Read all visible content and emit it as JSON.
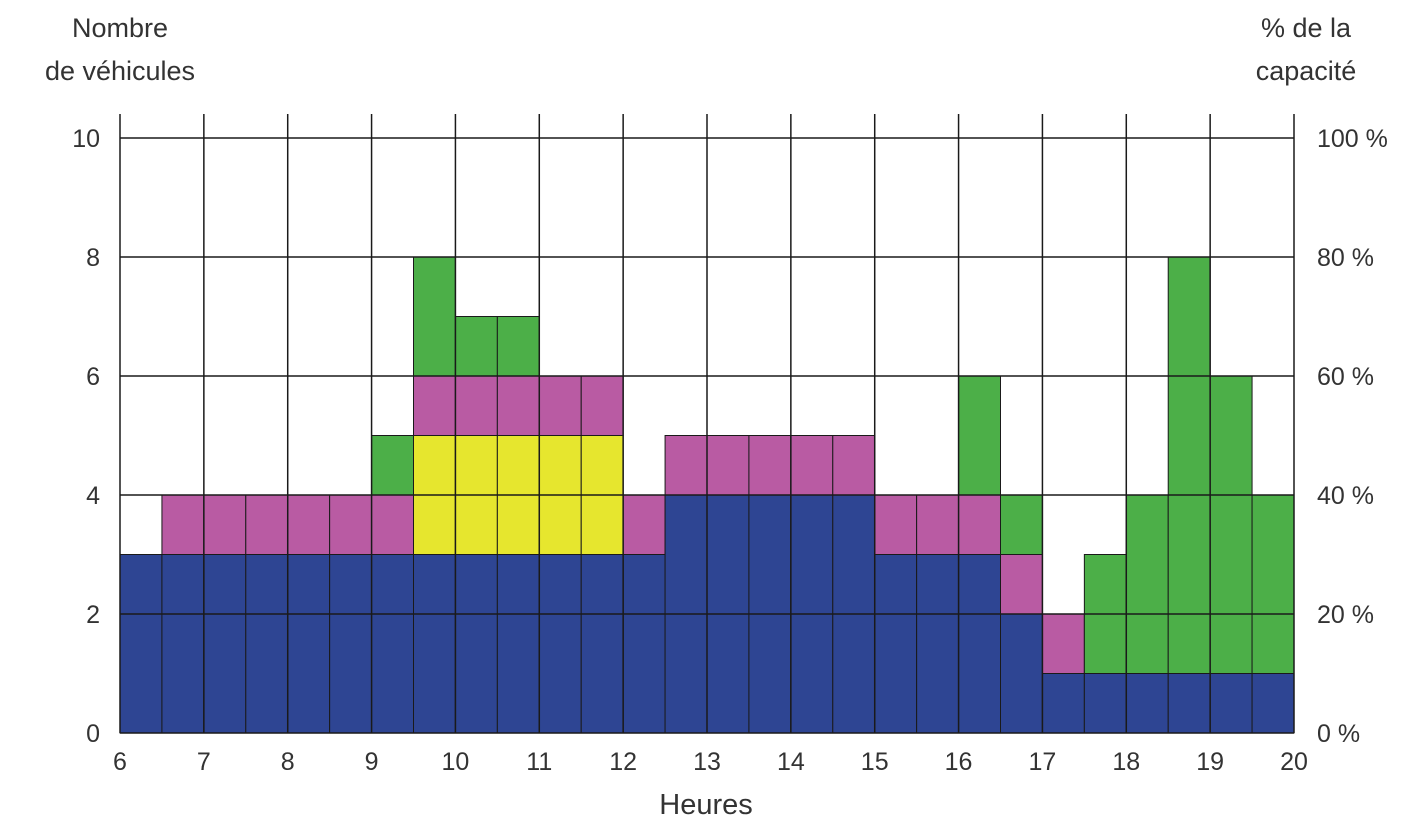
{
  "chart_data": {
    "type": "bar",
    "stacked": true,
    "left_axis_title": [
      "Nombre",
      "de véhicules"
    ],
    "right_axis_title": [
      "% de la",
      "capacité"
    ],
    "xlabel": "Heures",
    "x_ticks": [
      "6",
      "7",
      "8",
      "9",
      "10",
      "11",
      "12",
      "13",
      "14",
      "15",
      "16",
      "17",
      "18",
      "19",
      "20"
    ],
    "y_ticks": [
      "0",
      "2",
      "4",
      "6",
      "8",
      "10"
    ],
    "right_ticks": [
      "0 %",
      "20 %",
      "40 %",
      "60 %",
      "80 %",
      "100 %"
    ],
    "xlim": [
      6,
      20
    ],
    "ylim": [
      0,
      10
    ],
    "y2lim": [
      0,
      100
    ],
    "grid": true,
    "bin_width_hours": 0.5,
    "bin_starts": [
      6,
      6.5,
      7,
      7.5,
      8,
      8.5,
      9,
      9.5,
      10,
      10.5,
      11,
      11.5,
      12,
      12.5,
      13,
      13.5,
      14,
      14.5,
      15,
      15.5,
      16,
      16.5,
      17,
      17.5,
      18,
      18.5,
      19,
      19.5
    ],
    "series": [
      {
        "color": "#2e4593",
        "values": [
          3,
          3,
          3,
          3,
          3,
          3,
          3,
          3,
          3,
          3,
          3,
          3,
          3,
          4,
          4,
          4,
          4,
          4,
          3,
          3,
          3,
          2,
          1,
          1,
          1,
          1,
          1,
          1
        ]
      },
      {
        "color": "#e6e62e",
        "values": [
          0,
          0,
          0,
          0,
          0,
          0,
          0,
          2,
          2,
          2,
          2,
          2,
          0,
          0,
          0,
          0,
          0,
          0,
          0,
          0,
          0,
          0,
          0,
          0,
          0,
          0,
          0,
          0
        ]
      },
      {
        "color": "#b95ba3",
        "values": [
          0,
          1,
          1,
          1,
          1,
          1,
          1,
          1,
          1,
          1,
          1,
          1,
          1,
          1,
          1,
          1,
          1,
          1,
          1,
          1,
          1,
          1,
          1,
          0,
          0,
          0,
          0,
          0
        ]
      },
      {
        "color": "#4caf48",
        "values": [
          0,
          0,
          0,
          0,
          0,
          0,
          1,
          2,
          1,
          1,
          0,
          0,
          0,
          0,
          0,
          0,
          0,
          0,
          0,
          0,
          2,
          1,
          0,
          2,
          3,
          7,
          5,
          3
        ]
      }
    ]
  }
}
